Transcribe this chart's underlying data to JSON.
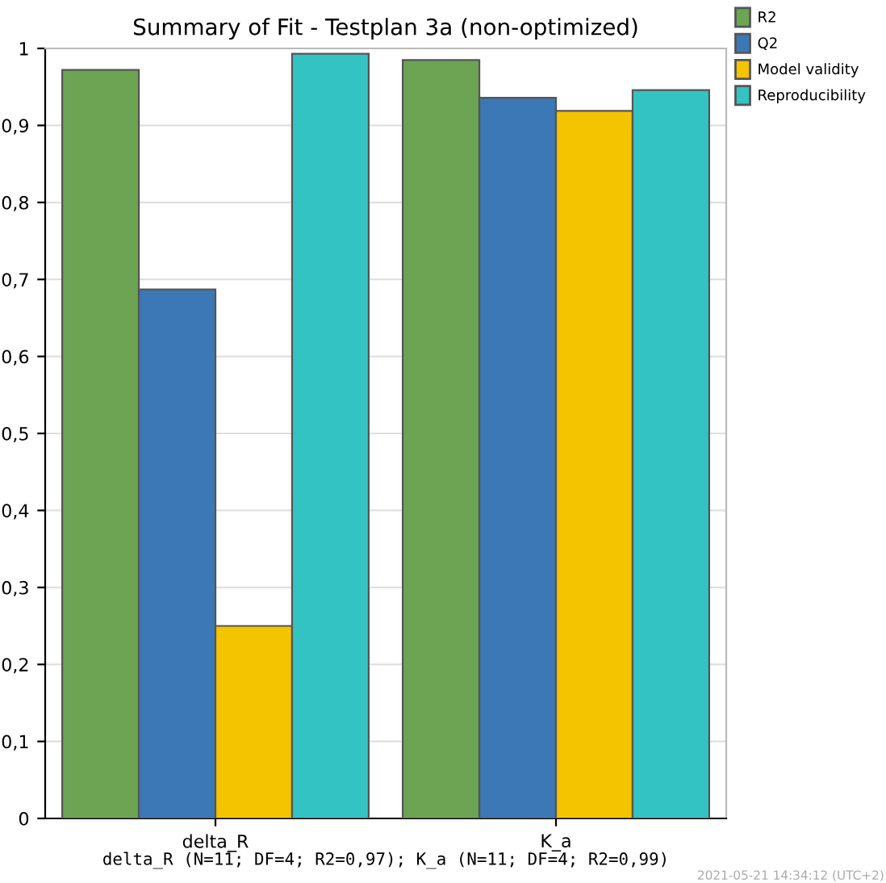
{
  "chart_data": {
    "type": "bar",
    "title": "Summary of Fit - Testplan 3a (non-optimized)",
    "xlabel": "delta_R (N=11; DF=4; R2=0,97); K_a (N=11; DF=4; R2=0,99)",
    "categories": [
      "delta_R",
      "K_a"
    ],
    "series": [
      {
        "name": "R2",
        "color": "#6ca453",
        "values": [
          0.972,
          0.985
        ]
      },
      {
        "name": "Q2",
        "color": "#3b78b5",
        "values": [
          0.687,
          0.936
        ]
      },
      {
        "name": "Model validity",
        "color": "#f5c400",
        "values": [
          0.25,
          0.919
        ]
      },
      {
        "name": "Reproducibility",
        "color": "#33c3c3",
        "values": [
          0.993,
          0.946
        ]
      }
    ],
    "ylim": [
      0,
      1
    ],
    "yticks": [
      0,
      {
        "value": 0.1,
        "label": "0,1"
      },
      {
        "value": 0.2,
        "label": "0,2"
      },
      {
        "value": 0.3,
        "label": "0,3"
      },
      {
        "value": 0.4,
        "label": "0,4"
      },
      {
        "value": 0.5,
        "label": "0,5"
      },
      {
        "value": 0.6,
        "label": "0,6"
      },
      {
        "value": 0.7,
        "label": "0,7"
      },
      {
        "value": 0.8,
        "label": "0,8"
      },
      {
        "value": 0.9,
        "label": "0,9"
      },
      1
    ],
    "grid": "y",
    "legend": "top right",
    "annotations": [
      "2021-05-21 14:34:12 (UTC+2)"
    ]
  }
}
